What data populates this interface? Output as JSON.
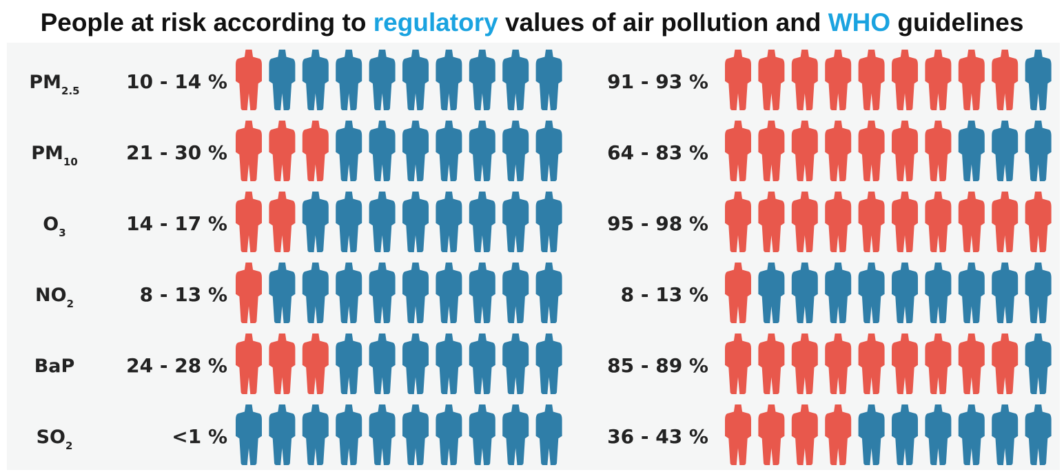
{
  "title": {
    "part1": "People at risk according to ",
    "highlight1": "regulatory",
    "part2": " values of air pollution and ",
    "highlight2": "WHO",
    "part3": " guidelines"
  },
  "colors": {
    "at_risk": "#e8584c",
    "not_at_risk": "#2f7ea8",
    "highlight": "#1aa3e0"
  },
  "chart_data": {
    "type": "pictogram",
    "icons_per_row": 10,
    "groups": [
      "regulatory values",
      "WHO guidelines"
    ],
    "rows": [
      {
        "pollutant": "PM",
        "sub": "2.5",
        "regulatory": {
          "label": "10 - 14 %",
          "red_icons": 1
        },
        "who": {
          "label": "91 - 93 %",
          "red_icons": 9
        }
      },
      {
        "pollutant": "PM",
        "sub": "10",
        "regulatory": {
          "label": "21 - 30 %",
          "red_icons": 3
        },
        "who": {
          "label": "64 - 83 %",
          "red_icons": 7
        }
      },
      {
        "pollutant": "O",
        "sub": "3",
        "regulatory": {
          "label": "14 - 17 %",
          "red_icons": 2
        },
        "who": {
          "label": "95 - 98 %",
          "red_icons": 10
        }
      },
      {
        "pollutant": "NO",
        "sub": "2",
        "regulatory": {
          "label": "8 - 13 %",
          "red_icons": 1
        },
        "who": {
          "label": "8 - 13 %",
          "red_icons": 1
        }
      },
      {
        "pollutant": "BaP",
        "sub": "",
        "regulatory": {
          "label": "24 - 28 %",
          "red_icons": 3
        },
        "who": {
          "label": "85 - 89 %",
          "red_icons": 9
        }
      },
      {
        "pollutant": "SO",
        "sub": "2",
        "regulatory": {
          "label": "<1 %",
          "red_icons": 0
        },
        "who": {
          "label": "36 - 43 %",
          "red_icons": 4
        }
      }
    ]
  }
}
